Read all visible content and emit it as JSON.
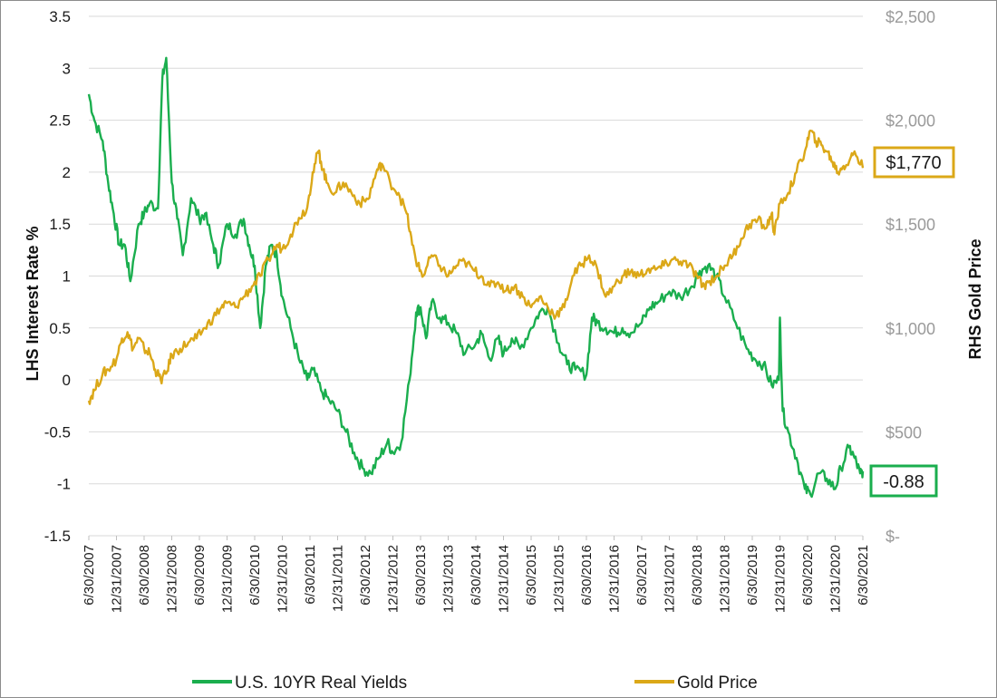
{
  "chart_data": {
    "type": "line",
    "y_left": {
      "label": "LHS Interest Rate %",
      "range": [
        -1.5,
        3.5
      ],
      "ticks": [
        "3.5",
        "3",
        "2.5",
        "2",
        "1.5",
        "1",
        "0.5",
        "0",
        "-0.5",
        "-1",
        "-1.5"
      ]
    },
    "y_right": {
      "label": "RHS Gold Price",
      "range": [
        0,
        2500
      ],
      "ticks": [
        "$2,500",
        "$2,000",
        "$1,500",
        "$1,000",
        "$500",
        "$-"
      ]
    },
    "x_ticks": [
      "6/30/2007",
      "12/31/2007",
      "6/30/2008",
      "12/31/2008",
      "6/30/2009",
      "12/31/2009",
      "6/30/2010",
      "12/31/2010",
      "6/30/2011",
      "12/31/2011",
      "6/30/2012",
      "12/31/2012",
      "6/30/2013",
      "12/31/2013",
      "6/30/2014",
      "12/31/2014",
      "6/30/2015",
      "12/31/2015",
      "6/30/2016",
      "12/31/2016",
      "6/30/2017",
      "12/31/2017",
      "6/30/2018",
      "12/31/2018",
      "6/30/2019",
      "12/31/2019",
      "6/30/2020",
      "12/31/2020",
      "6/30/2021"
    ],
    "gridlines": true,
    "legend_position": "bottom",
    "series": [
      {
        "name": "U.S. 10YR Real Yields",
        "axis": "left",
        "color": "#1aae4e",
        "last_value_label": "-0.88",
        "x": [
          2007.5,
          2007.6,
          2007.75,
          2007.85,
          2007.95,
          2008.05,
          2008.15,
          2008.25,
          2008.4,
          2008.5,
          2008.6,
          2008.75,
          2008.83,
          2008.9,
          2009.0,
          2009.1,
          2009.2,
          2009.35,
          2009.5,
          2009.6,
          2009.75,
          2009.85,
          2010.0,
          2010.15,
          2010.3,
          2010.4,
          2010.5,
          2010.6,
          2010.7,
          2010.8,
          2010.9,
          2011.0,
          2011.15,
          2011.3,
          2011.45,
          2011.55,
          2011.7,
          2011.85,
          2012.0,
          2012.15,
          2012.3,
          2012.45,
          2012.6,
          2012.75,
          2012.9,
          2013.0,
          2013.15,
          2013.3,
          2013.42,
          2013.5,
          2013.6,
          2013.7,
          2013.85,
          2014.0,
          2014.15,
          2014.3,
          2014.5,
          2014.6,
          2014.75,
          2014.9,
          2015.0,
          2015.15,
          2015.3,
          2015.5,
          2015.65,
          2015.8,
          2016.0,
          2016.15,
          2016.3,
          2016.5,
          2016.6,
          2016.7,
          2016.85,
          2017.0,
          2017.15,
          2017.3,
          2017.5,
          2017.65,
          2017.8,
          2018.0,
          2018.2,
          2018.4,
          2018.55,
          2018.7,
          2018.85,
          2019.0,
          2019.2,
          2019.4,
          2019.55,
          2019.7,
          2019.85,
          2019.98,
          2020.0,
          2020.05,
          2020.15,
          2020.3,
          2020.45,
          2020.55,
          2020.7,
          2020.85,
          2021.0,
          2021.1,
          2021.25,
          2021.35,
          2021.45,
          2021.5
        ],
        "values": [
          2.75,
          2.5,
          2.3,
          1.9,
          1.6,
          1.3,
          1.3,
          0.95,
          1.5,
          1.6,
          1.7,
          1.65,
          2.9,
          3.1,
          1.9,
          1.55,
          1.2,
          1.75,
          1.55,
          1.6,
          1.3,
          1.1,
          1.5,
          1.4,
          1.55,
          1.3,
          1.1,
          0.5,
          1.1,
          1.3,
          1.2,
          0.8,
          0.5,
          0.2,
          0.0,
          0.1,
          -0.1,
          -0.2,
          -0.3,
          -0.5,
          -0.7,
          -0.85,
          -0.9,
          -0.75,
          -0.6,
          -0.7,
          -0.6,
          0.0,
          0.65,
          0.7,
          0.4,
          0.75,
          0.6,
          0.55,
          0.45,
          0.25,
          0.35,
          0.45,
          0.2,
          0.4,
          0.25,
          0.4,
          0.3,
          0.5,
          0.65,
          0.7,
          0.35,
          0.15,
          0.1,
          0.05,
          0.6,
          0.55,
          0.5,
          0.45,
          0.5,
          0.45,
          0.55,
          0.7,
          0.75,
          0.85,
          0.8,
          0.9,
          1.05,
          1.1,
          1.0,
          0.8,
          0.55,
          0.3,
          0.2,
          0.15,
          -0.05,
          0.0,
          0.6,
          -0.3,
          -0.5,
          -0.75,
          -1.05,
          -1.1,
          -0.9,
          -0.95,
          -1.05,
          -0.85,
          -0.65,
          -0.75,
          -0.9,
          -0.88
        ]
      },
      {
        "name": "Gold Price",
        "axis": "right",
        "color": "#dba818",
        "last_value_label": "$1,770",
        "x": [
          2007.5,
          2007.6,
          2007.75,
          2007.85,
          2008.0,
          2008.1,
          2008.2,
          2008.3,
          2008.4,
          2008.5,
          2008.6,
          2008.7,
          2008.8,
          2008.9,
          2009.0,
          2009.15,
          2009.3,
          2009.45,
          2009.6,
          2009.75,
          2009.9,
          2010.0,
          2010.15,
          2010.3,
          2010.45,
          2010.6,
          2010.75,
          2010.9,
          2011.0,
          2011.15,
          2011.3,
          2011.45,
          2011.55,
          2011.65,
          2011.7,
          2011.8,
          2011.95,
          2012.1,
          2012.25,
          2012.4,
          2012.55,
          2012.7,
          2012.8,
          2012.95,
          2013.1,
          2013.25,
          2013.35,
          2013.45,
          2013.55,
          2013.7,
          2013.85,
          2014.0,
          2014.15,
          2014.3,
          2014.45,
          2014.6,
          2014.75,
          2014.9,
          2015.05,
          2015.2,
          2015.35,
          2015.5,
          2015.65,
          2015.8,
          2015.95,
          2016.1,
          2016.25,
          2016.4,
          2016.55,
          2016.7,
          2016.85,
          2017.0,
          2017.15,
          2017.3,
          2017.45,
          2017.6,
          2017.75,
          2017.9,
          2018.05,
          2018.2,
          2018.35,
          2018.5,
          2018.6,
          2018.7,
          2018.85,
          2019.0,
          2019.15,
          2019.3,
          2019.45,
          2019.6,
          2019.75,
          2019.85,
          2019.9,
          2020.0,
          2020.15,
          2020.3,
          2020.45,
          2020.55,
          2020.65,
          2020.75,
          2020.85,
          2020.95,
          2021.05,
          2021.15,
          2021.25,
          2021.35,
          2021.5
        ],
        "values": [
          650,
          700,
          780,
          800,
          850,
          950,
          980,
          900,
          950,
          900,
          880,
          800,
          750,
          780,
          870,
          900,
          930,
          950,
          1000,
          1050,
          1100,
          1120,
          1100,
          1150,
          1200,
          1250,
          1330,
          1400,
          1380,
          1450,
          1530,
          1580,
          1750,
          1850,
          1800,
          1700,
          1650,
          1700,
          1650,
          1600,
          1620,
          1750,
          1790,
          1700,
          1650,
          1550,
          1400,
          1300,
          1250,
          1350,
          1300,
          1250,
          1300,
          1320,
          1280,
          1250,
          1200,
          1220,
          1180,
          1200,
          1150,
          1100,
          1150,
          1100,
          1060,
          1100,
          1250,
          1300,
          1350,
          1280,
          1150,
          1200,
          1250,
          1270,
          1250,
          1280,
          1280,
          1300,
          1330,
          1320,
          1300,
          1250,
          1200,
          1220,
          1250,
          1300,
          1350,
          1430,
          1500,
          1520,
          1480,
          1550,
          1450,
          1600,
          1650,
          1750,
          1850,
          1950,
          1900,
          1880,
          1850,
          1800,
          1750,
          1780,
          1800,
          1850,
          1770
        ]
      }
    ]
  },
  "callouts": {
    "gold_last": "$1,770",
    "yield_last": "-0.88"
  },
  "legend": {
    "yield_label": "U.S. 10YR Real Yields",
    "gold_label": "Gold Price"
  }
}
